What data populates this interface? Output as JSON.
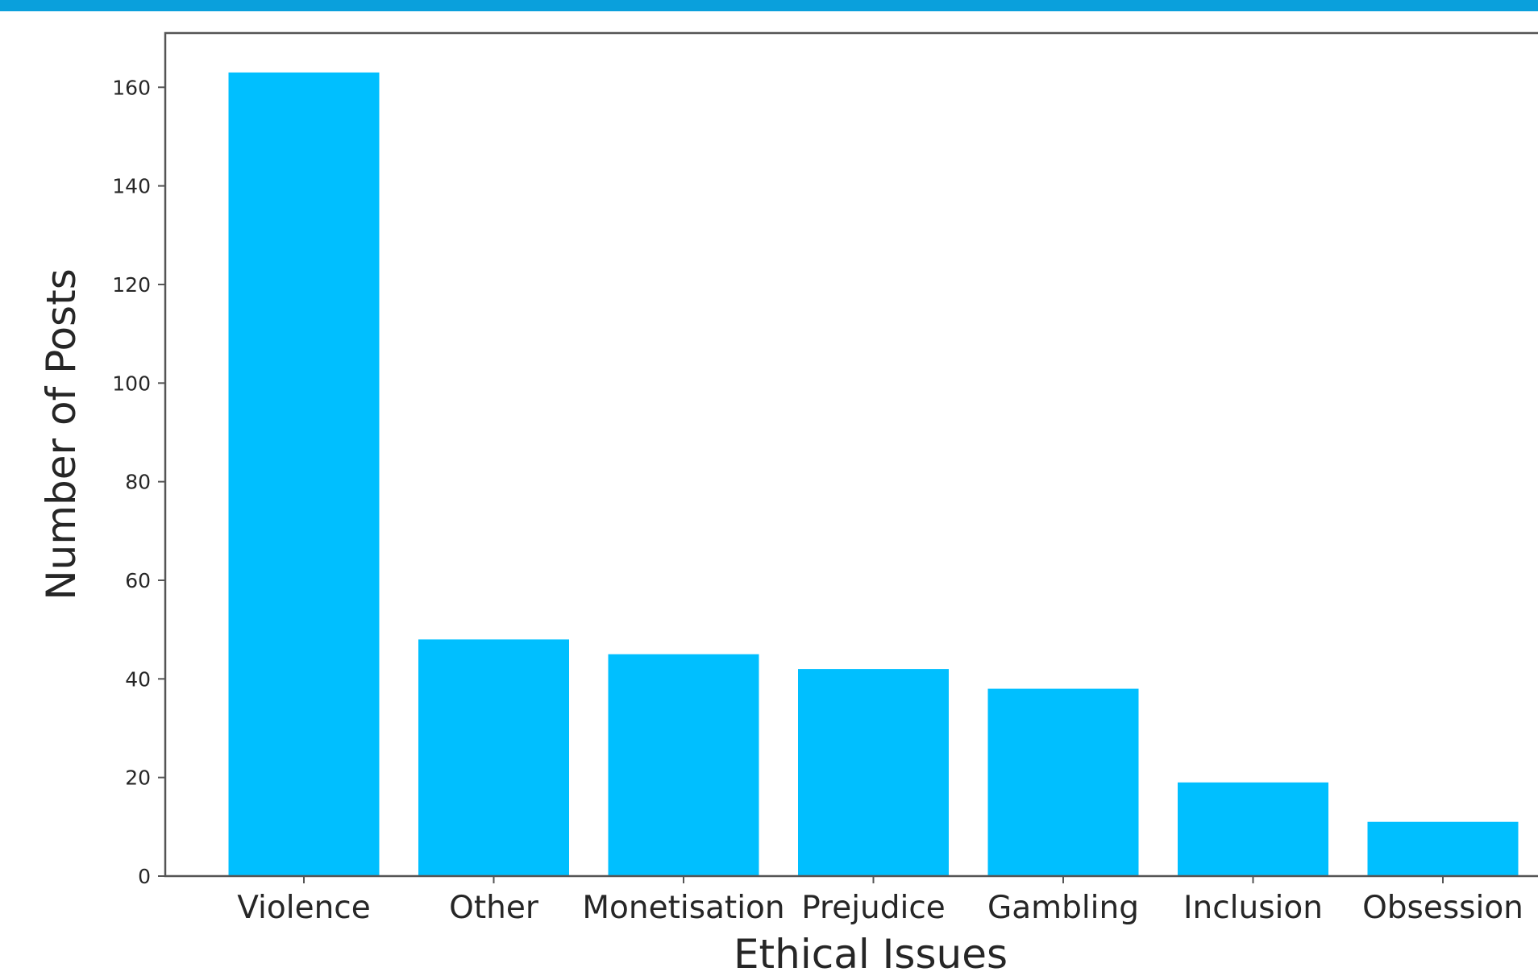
{
  "chart_data": {
    "type": "bar",
    "title": "",
    "xlabel": "Ethical Issues",
    "ylabel": "Number of Posts",
    "categories": [
      "Violence",
      "Other",
      "Monetisation",
      "Prejudice",
      "Gambling",
      "Inclusion",
      "Obsession"
    ],
    "values": [
      163,
      48,
      45,
      42,
      38,
      19,
      11
    ],
    "ylim": [
      0,
      171
    ],
    "yticks": [
      0,
      20,
      40,
      60,
      80,
      100,
      120,
      140,
      160
    ],
    "grid": false,
    "legend": "none",
    "bar_color": "#00bfff",
    "band_color": "#0aa0dc"
  }
}
